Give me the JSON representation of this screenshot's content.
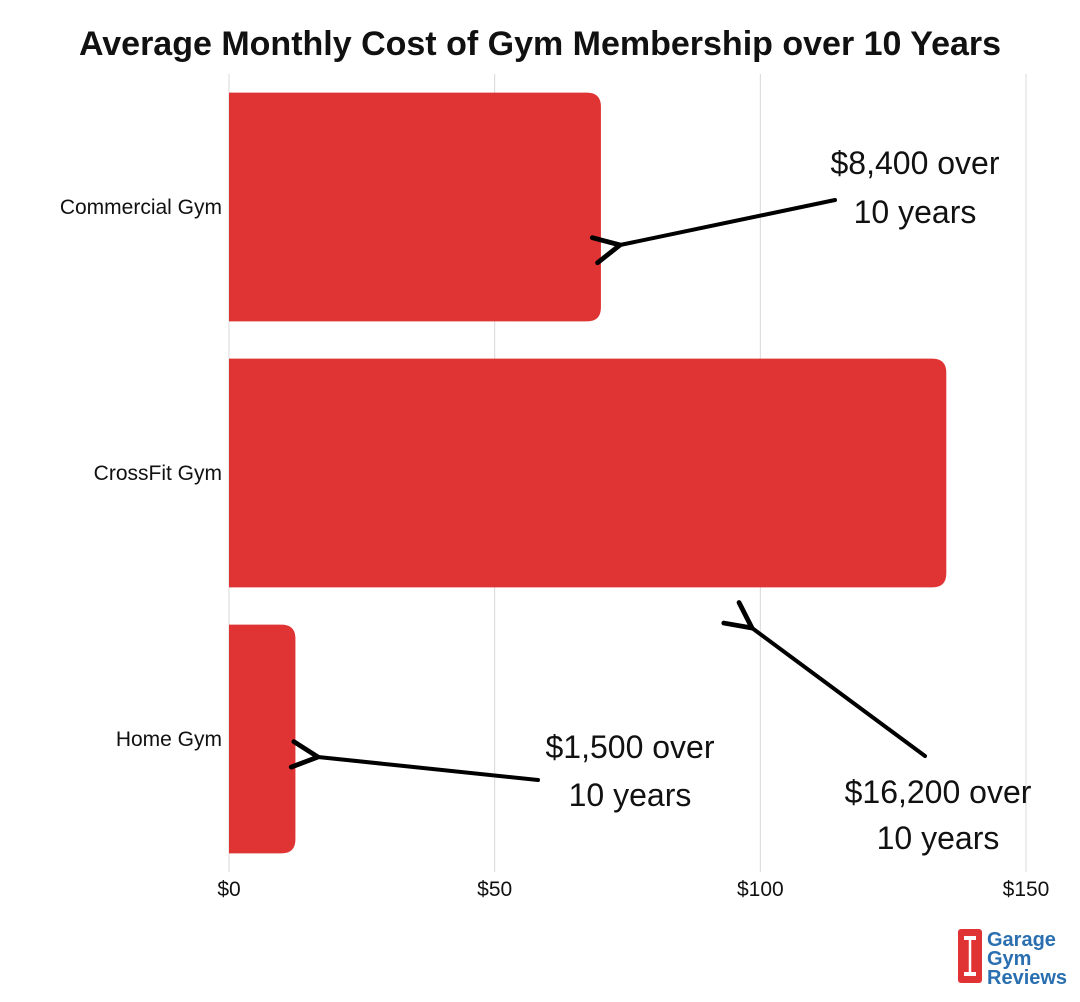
{
  "chart_data": {
    "type": "bar",
    "orientation": "horizontal",
    "title": "Average Monthly Cost of Gym Membership over 10 Years",
    "categories": [
      "Commercial Gym",
      "CrossFit Gym",
      "Home Gym"
    ],
    "values": [
      70,
      135,
      12.5
    ],
    "xlim": [
      0,
      150
    ],
    "xticks": [
      0,
      50,
      100,
      150
    ],
    "xtick_labels": [
      "$0",
      "$50",
      "$100",
      "$150"
    ],
    "xlabel": "",
    "ylabel": "",
    "grid": "vertical gridlines",
    "bar_color": "#e03434",
    "annotations": [
      {
        "category": "Commercial Gym",
        "lines": [
          "$8,400 over",
          "10 years"
        ]
      },
      {
        "category": "CrossFit Gym",
        "lines": [
          "$16,200 over",
          "10 years"
        ]
      },
      {
        "category": "Home Gym",
        "lines": [
          "$1,500 over",
          "10 years"
        ]
      }
    ]
  },
  "logo": {
    "lines": [
      "Garage",
      "Gym",
      "Reviews"
    ],
    "text_color": "#2a6fb0",
    "badge_color": "#e03434"
  }
}
